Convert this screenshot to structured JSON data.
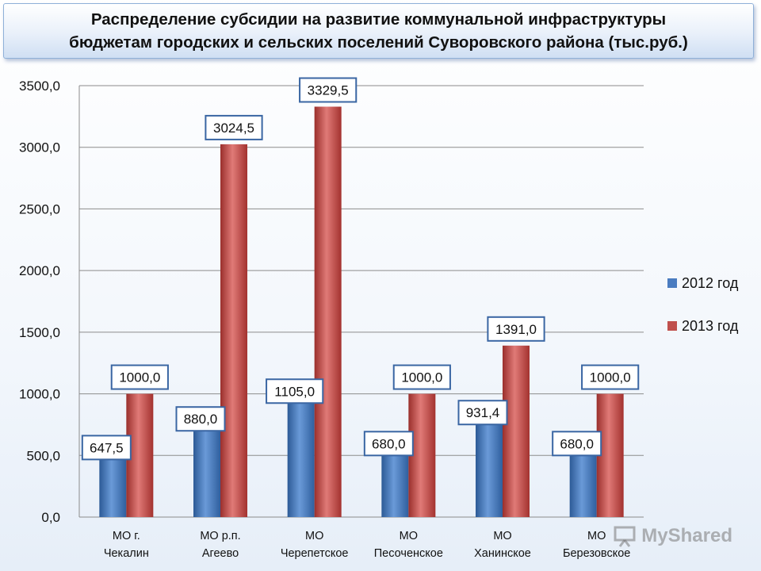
{
  "title": {
    "line1": "Распределение субсидии на развитие коммунальной инфраструктуры",
    "line2": "бюджетам городских и сельских поселений Суворовского района (тыс.руб.)"
  },
  "watermark": "MyShared",
  "chart_data": {
    "type": "bar",
    "categories": [
      [
        "МО г.",
        "Чекалин"
      ],
      [
        "МО р.п.",
        "Агеево"
      ],
      [
        "МО",
        "Черепетское"
      ],
      [
        "МО",
        "Песоченское"
      ],
      [
        "МО",
        "Ханинское"
      ],
      [
        "МО",
        "Березовское"
      ]
    ],
    "series": [
      {
        "name": "2012 год",
        "color": "#4a7cc0",
        "values": [
          647.5,
          880.0,
          1105.0,
          680.0,
          931.4,
          680.0
        ],
        "labels": [
          "647,5",
          "880,0",
          "1105,0",
          "680,0",
          "931,4",
          "680,0"
        ]
      },
      {
        "name": "2013 год",
        "color": "#c0504d",
        "values": [
          1000.0,
          3024.5,
          3329.5,
          1000.0,
          1391.0,
          1000.0
        ],
        "labels": [
          "1000,0",
          "3024,5",
          "3329,5",
          "1000,0",
          "1391,0",
          "1000,0"
        ]
      }
    ],
    "ylim": [
      0,
      3500
    ],
    "yticks": [
      "0,0",
      "500,0",
      "1000,0",
      "1500,0",
      "2000,0",
      "2500,0",
      "3000,0",
      "3500,0"
    ],
    "grid": true,
    "legend": "right",
    "xlabel": "",
    "ylabel": ""
  }
}
